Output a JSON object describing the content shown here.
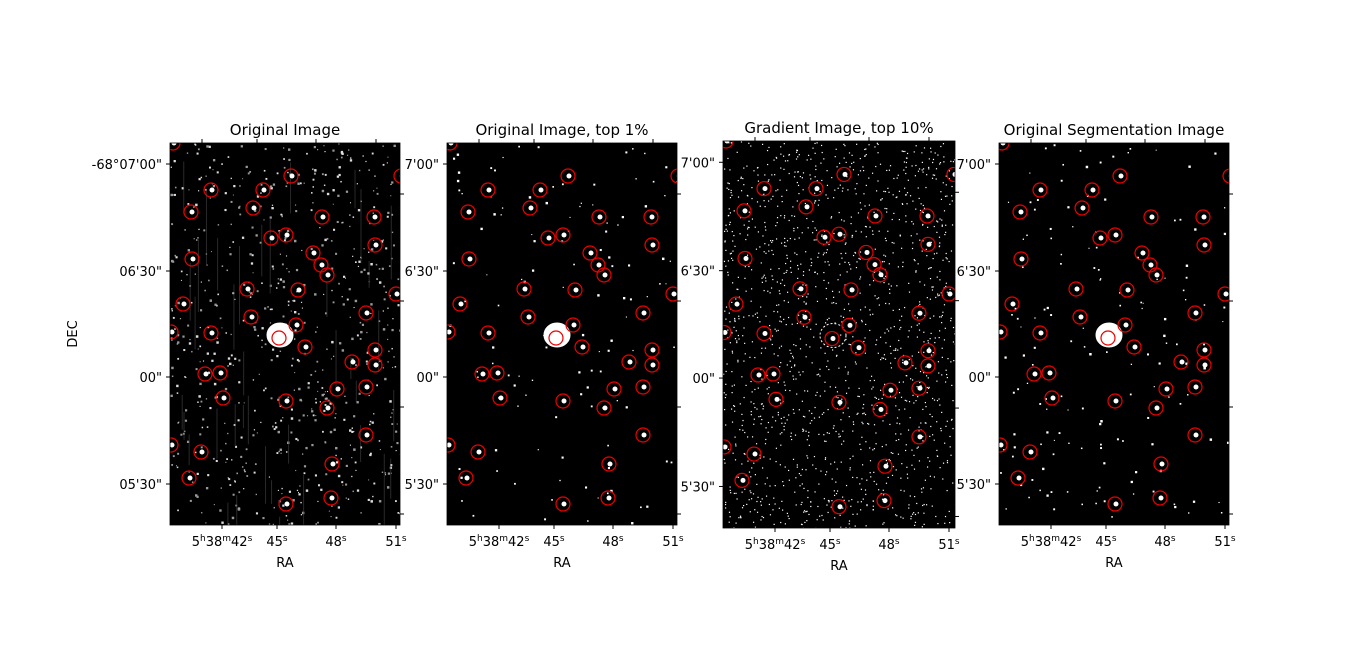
{
  "panels": [
    {
      "title": "Original Image",
      "x_label": "RA",
      "y_label": "DEC",
      "y_ticks": [
        "-68°07'00\"",
        "06'30\"",
        "00\"",
        "05'30\""
      ],
      "x_ticks": [
        [
          "5",
          "h",
          "38",
          "m",
          "42",
          "s"
        ],
        [
          "45",
          "s"
        ],
        [
          "48",
          "s"
        ],
        [
          "51",
          "s"
        ]
      ]
    },
    {
      "title": "Original Image, top 1%",
      "x_label": "RA",
      "y_ticks": [
        "7'00\"",
        "6'30\"",
        "00\"",
        "5'30\""
      ],
      "x_ticks": [
        [
          "5",
          "h",
          "38",
          "m",
          "42",
          "s"
        ],
        [
          "45",
          "s"
        ],
        [
          "48",
          "s"
        ],
        [
          "51",
          "s"
        ]
      ]
    },
    {
      "title": "Gradient Image, top 10%",
      "x_label": "RA",
      "y_ticks": [
        "7'00\"",
        "6'30\"",
        "00\"",
        "5'30\""
      ],
      "x_ticks": [
        [
          "5",
          "h",
          "38",
          "m",
          "42",
          "s"
        ],
        [
          "45",
          "s"
        ],
        [
          "48",
          "s"
        ],
        [
          "51",
          "s"
        ]
      ]
    },
    {
      "title": "Original Segmentation Image",
      "x_label": "RA",
      "y_ticks": [
        "7'00\"",
        "6'30\"",
        "00\"",
        "5'30\""
      ],
      "x_ticks": [
        [
          "5",
          "h",
          "38",
          "m",
          "42",
          "s"
        ],
        [
          "45",
          "s"
        ],
        [
          "48",
          "s"
        ],
        [
          "51",
          "s"
        ]
      ]
    }
  ]
}
